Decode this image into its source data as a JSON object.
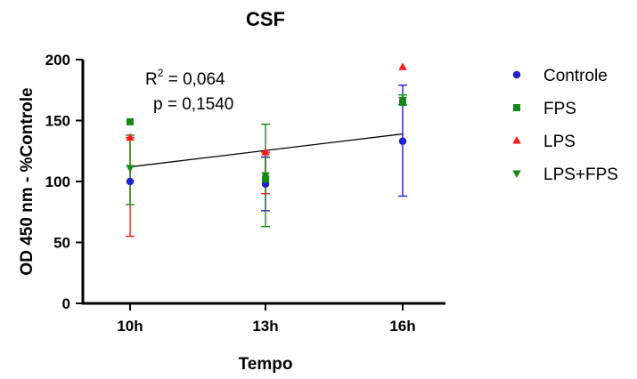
{
  "chart_data": {
    "type": "scatter",
    "title": "CSF",
    "xlabel": "Tempo",
    "ylabel": "OD 450 nm - %Controle",
    "categories": [
      "10h",
      "13h",
      "16h"
    ],
    "ylim": [
      0,
      200
    ],
    "yticks": [
      "0",
      "50",
      "100",
      "150",
      "200"
    ],
    "grid": false,
    "legend_position": "right",
    "series": [
      {
        "name": "Controle",
        "marker": "circle",
        "color": "#1f1fd0",
        "values": [
          100,
          98,
          133
        ],
        "err_low": [
          100,
          76,
          88
        ],
        "err_high": [
          100,
          120,
          179
        ]
      },
      {
        "name": "FPS",
        "marker": "square",
        "color": "#138a13",
        "values": [
          149,
          102,
          165
        ],
        "err_low": [
          149,
          102,
          165
        ],
        "err_high": [
          149,
          102,
          165
        ]
      },
      {
        "name": "LPS",
        "marker": "triangle-up",
        "color": "#ff1a1a",
        "values": [
          136,
          124,
          194
        ],
        "err_low": [
          55,
          90,
          194
        ],
        "err_high": [
          136,
          124,
          194
        ]
      },
      {
        "name": "LPS+FPS",
        "marker": "triangle-down",
        "color": "#138a13",
        "values": [
          111,
          105,
          167
        ],
        "err_low": [
          81,
          63,
          163
        ],
        "err_high": [
          138,
          147,
          171
        ]
      }
    ],
    "trendline": {
      "x": [
        "10h",
        "16h"
      ],
      "y": [
        112,
        139
      ],
      "color": "#000000"
    },
    "annotations": {
      "r2_prefix": "R",
      "r2_exp": "2",
      "r2_rest": " = 0,064",
      "p_value": "p = 0,1540"
    }
  }
}
